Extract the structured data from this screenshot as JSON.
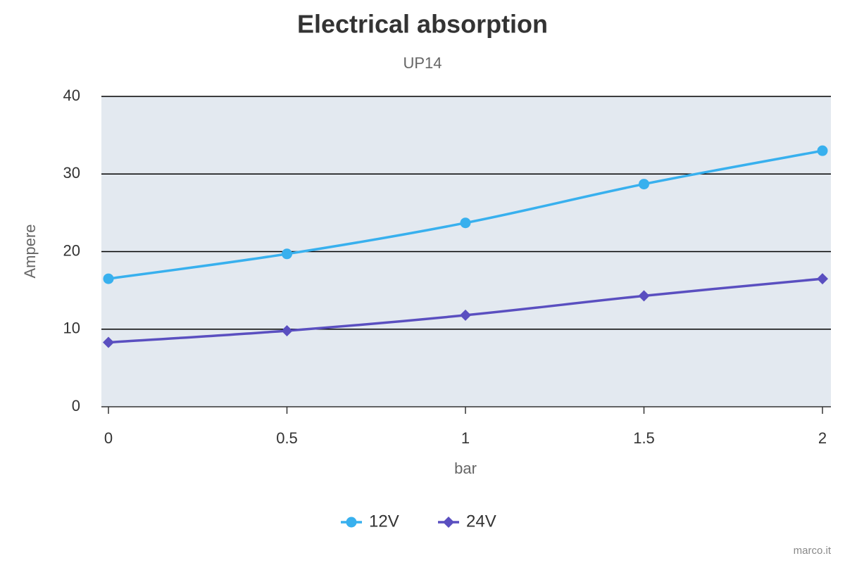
{
  "chart_data": {
    "type": "line",
    "title": "Electrical absorption",
    "subtitle": "UP14",
    "x_label": "bar",
    "y_label": "Ampere",
    "x": [
      0,
      0.5,
      1,
      1.5,
      2
    ],
    "series": [
      {
        "name": "12V",
        "color": "#38b0ee",
        "marker": "circle",
        "values": [
          16.5,
          19.7,
          23.7,
          28.7,
          33
        ]
      },
      {
        "name": "24V",
        "color": "#5a4fc0",
        "marker": "diamond",
        "values": [
          8.3,
          9.8,
          11.8,
          14.3,
          16.5
        ]
      }
    ],
    "xlim": [
      0,
      2
    ],
    "xticks": [
      0,
      0.5,
      1,
      1.5,
      2
    ],
    "ylim": [
      0,
      40
    ],
    "yticks": [
      0,
      10,
      20,
      30,
      40
    ],
    "grid": true,
    "legend": "bottom",
    "credit": "marco.it"
  }
}
